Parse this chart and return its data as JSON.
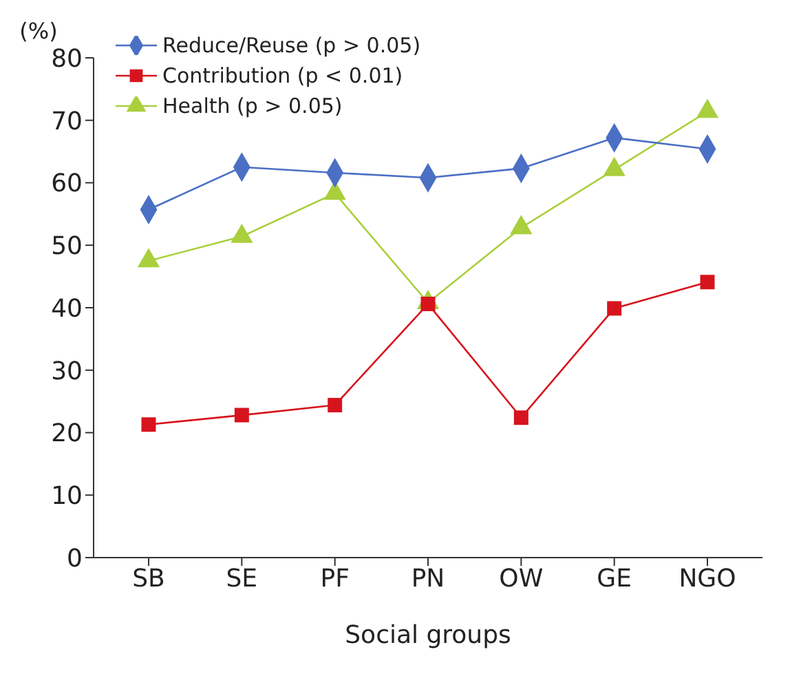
{
  "chart_data": {
    "type": "line",
    "xlabel": "Social groups",
    "ylabel": "(%)",
    "categories": [
      "SB",
      "SE",
      "PF",
      "PN",
      "OW",
      "GE",
      "NGO"
    ],
    "ylim": [
      0,
      80
    ],
    "yticks": [
      0,
      10,
      20,
      30,
      40,
      50,
      60,
      70,
      80
    ],
    "grid": false,
    "legend": "top left",
    "line_style": "solid",
    "series": [
      {
        "name": "Reduce/Reuse (p > 0.05)",
        "color": "#4a6fc4",
        "marker": "diamond",
        "values": [
          55.7,
          62.5,
          61.6,
          60.8,
          62.3,
          67.2,
          65.4
        ]
      },
      {
        "name": "Contribution (p < 0.01)",
        "color": "#d7141e",
        "marker": "square",
        "values": [
          21.3,
          22.8,
          24.4,
          40.6,
          22.4,
          39.9,
          44.1
        ]
      },
      {
        "name": "Health (p > 0.05)",
        "color": "#a9cf3c",
        "marker": "triangle",
        "values": [
          47.5,
          51.4,
          58.3,
          40.8,
          52.8,
          62.1,
          71.4
        ]
      }
    ]
  }
}
